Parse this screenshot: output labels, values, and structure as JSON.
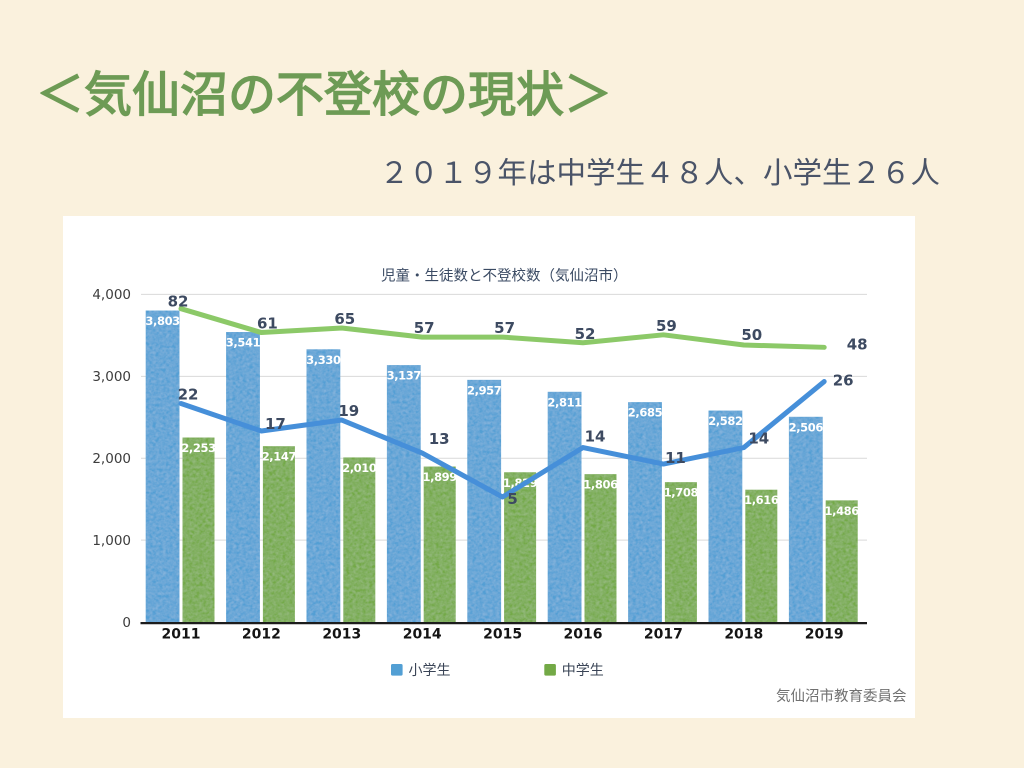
{
  "slide": {
    "title": "＜気仙沼の不登校の現状＞",
    "subtitle": "２０１９年は中学生４８人、小学生２６人",
    "title_color": "#6d9b55",
    "subtitle_color": "#4a5468",
    "background_color": "#faf1dd"
  },
  "chart_data": {
    "type": "combo_bar_line",
    "title": "児童・生徒数と不登校数（気仙沼市）",
    "categories": [
      "2011",
      "2012",
      "2013",
      "2014",
      "2015",
      "2016",
      "2017",
      "2018",
      "2019"
    ],
    "bar_series": [
      {
        "name": "小学生",
        "color": "#529fd4",
        "values": [
          3803,
          3541,
          3330,
          3137,
          2957,
          2811,
          2685,
          2582,
          2506
        ]
      },
      {
        "name": "中学生",
        "color": "#73a946",
        "values": [
          2253,
          2147,
          2010,
          1899,
          1829,
          1806,
          1708,
          1616,
          1486
        ]
      }
    ],
    "line_series": [
      {
        "name": "中学生",
        "color": "#8cc968",
        "values": [
          82,
          61,
          65,
          57,
          57,
          52,
          59,
          50,
          48
        ],
        "hidden_axis": {
          "min": -194,
          "max": 94.6
        },
        "label_dx": [
          -3,
          6,
          3,
          2,
          2,
          2,
          3,
          8,
          33
        ],
        "label_dy": [
          -2,
          -4,
          -4,
          -4,
          -4,
          -4,
          -4,
          -5,
          2
        ]
      },
      {
        "name": "小学生",
        "color": "#468fd9",
        "values": [
          22,
          17,
          19,
          13,
          5,
          14,
          11,
          14,
          26
        ],
        "hidden_axis": {
          "min": -17.75,
          "max": 41.85
        },
        "label_dx": [
          7,
          14,
          7,
          17,
          10,
          12,
          12,
          15,
          19
        ],
        "label_dy": [
          -4,
          -2,
          -4,
          -9,
          7,
          -6,
          -1,
          -4,
          4
        ]
      }
    ],
    "y_axis": {
      "min": 0,
      "max": 4000,
      "tick_step": 1000,
      "tick_labels": [
        "0",
        "1,000",
        "2,000",
        "3,000",
        "4,000"
      ],
      "grid": true
    },
    "legend": {
      "position": "bottom",
      "items": [
        {
          "label": "小学生",
          "color": "#529fd4"
        },
        {
          "label": "中学生",
          "color": "#73a946"
        }
      ]
    },
    "source": "気仙沼市教育委員会",
    "title_color": "#3a4a63",
    "label_color": "#3d4a61",
    "axis_color": "#141414",
    "grid_color": "#d9d9d9",
    "source_color": "#707070"
  }
}
